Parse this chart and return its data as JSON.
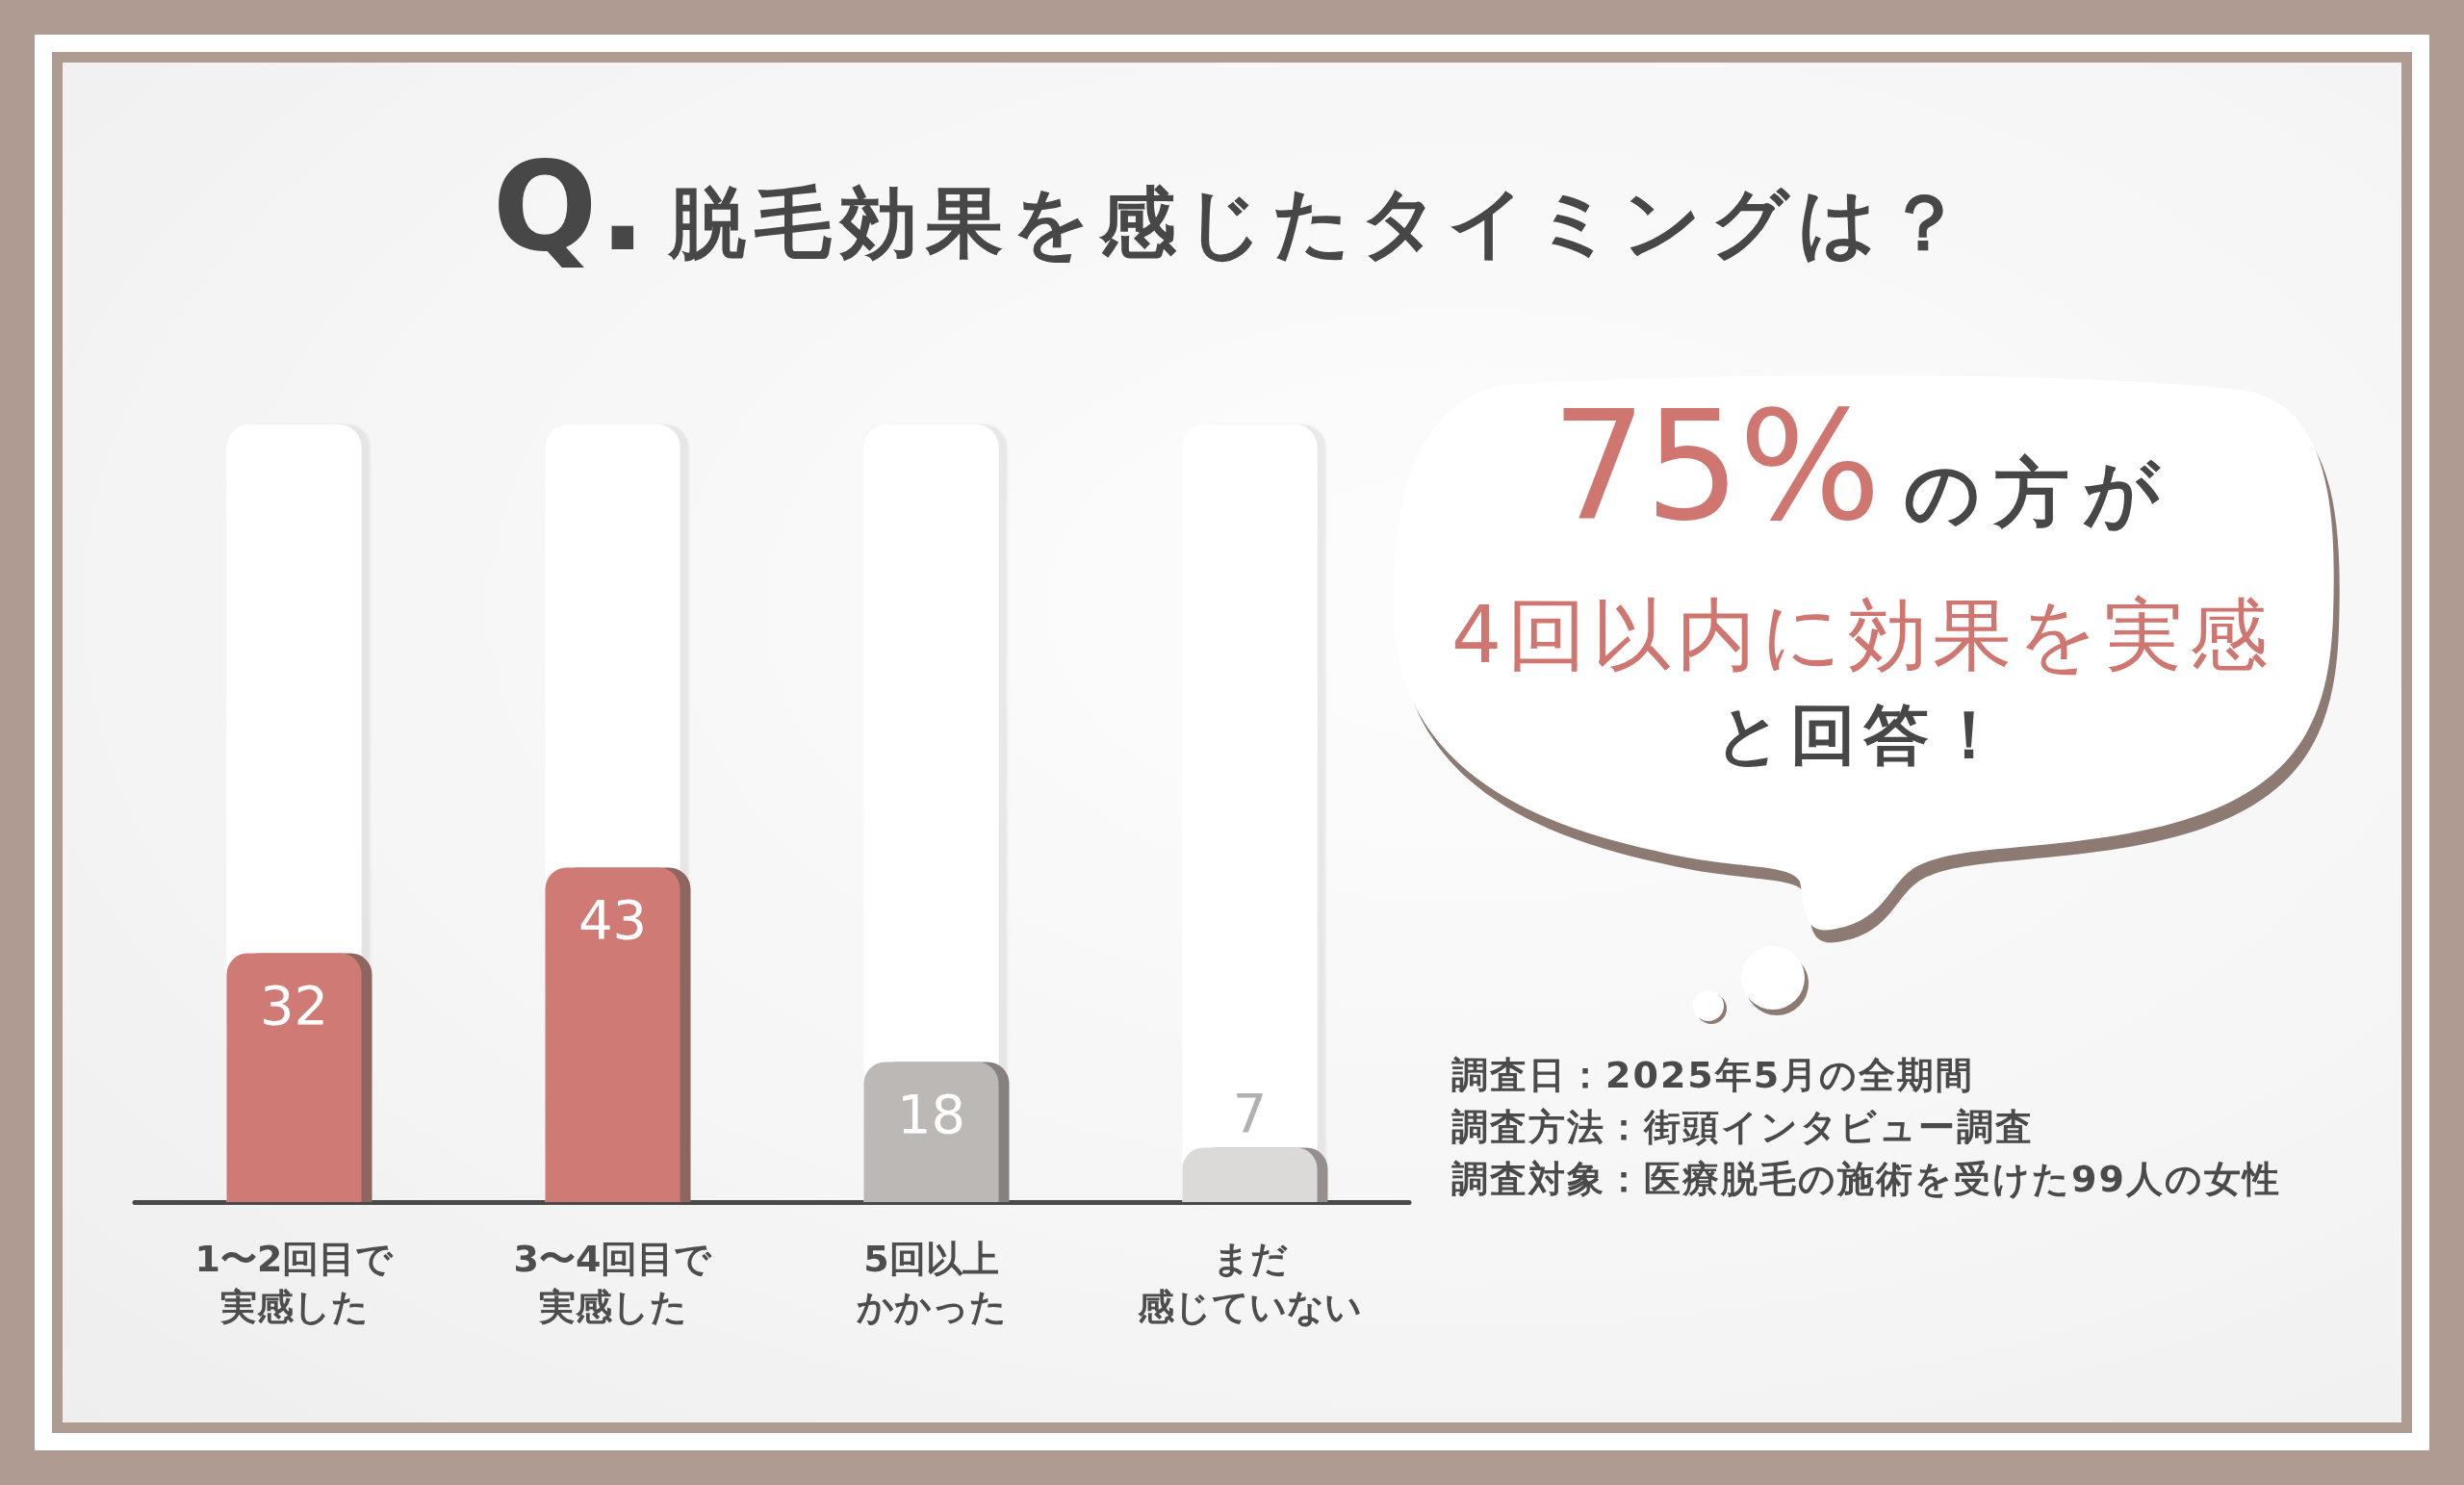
{
  "chart_data": {
    "type": "bar",
    "title": "Q.脱毛効果を感じたタイミングは？",
    "categories": [
      "1〜2回目で実感した",
      "3〜4回目で実感した",
      "5回以上かかった",
      "まだ感じていない"
    ],
    "values": [
      32,
      43,
      18,
      7
    ],
    "colors": [
      "#d07a74",
      "#d07a74",
      "#bcb8b6",
      "#dcdad8"
    ],
    "ylim": [
      0,
      100
    ],
    "data_labels": true,
    "tick_labels": "x",
    "annotations": [
      "75%の方が",
      "4回以内に効果を実感",
      "と回答！",
      "調査日：2025年5月の全期間",
      "調査方法：街頭インタビュー調査",
      "調査対象：医療脱毛の施術を受けた99人の女性"
    ]
  }
}
